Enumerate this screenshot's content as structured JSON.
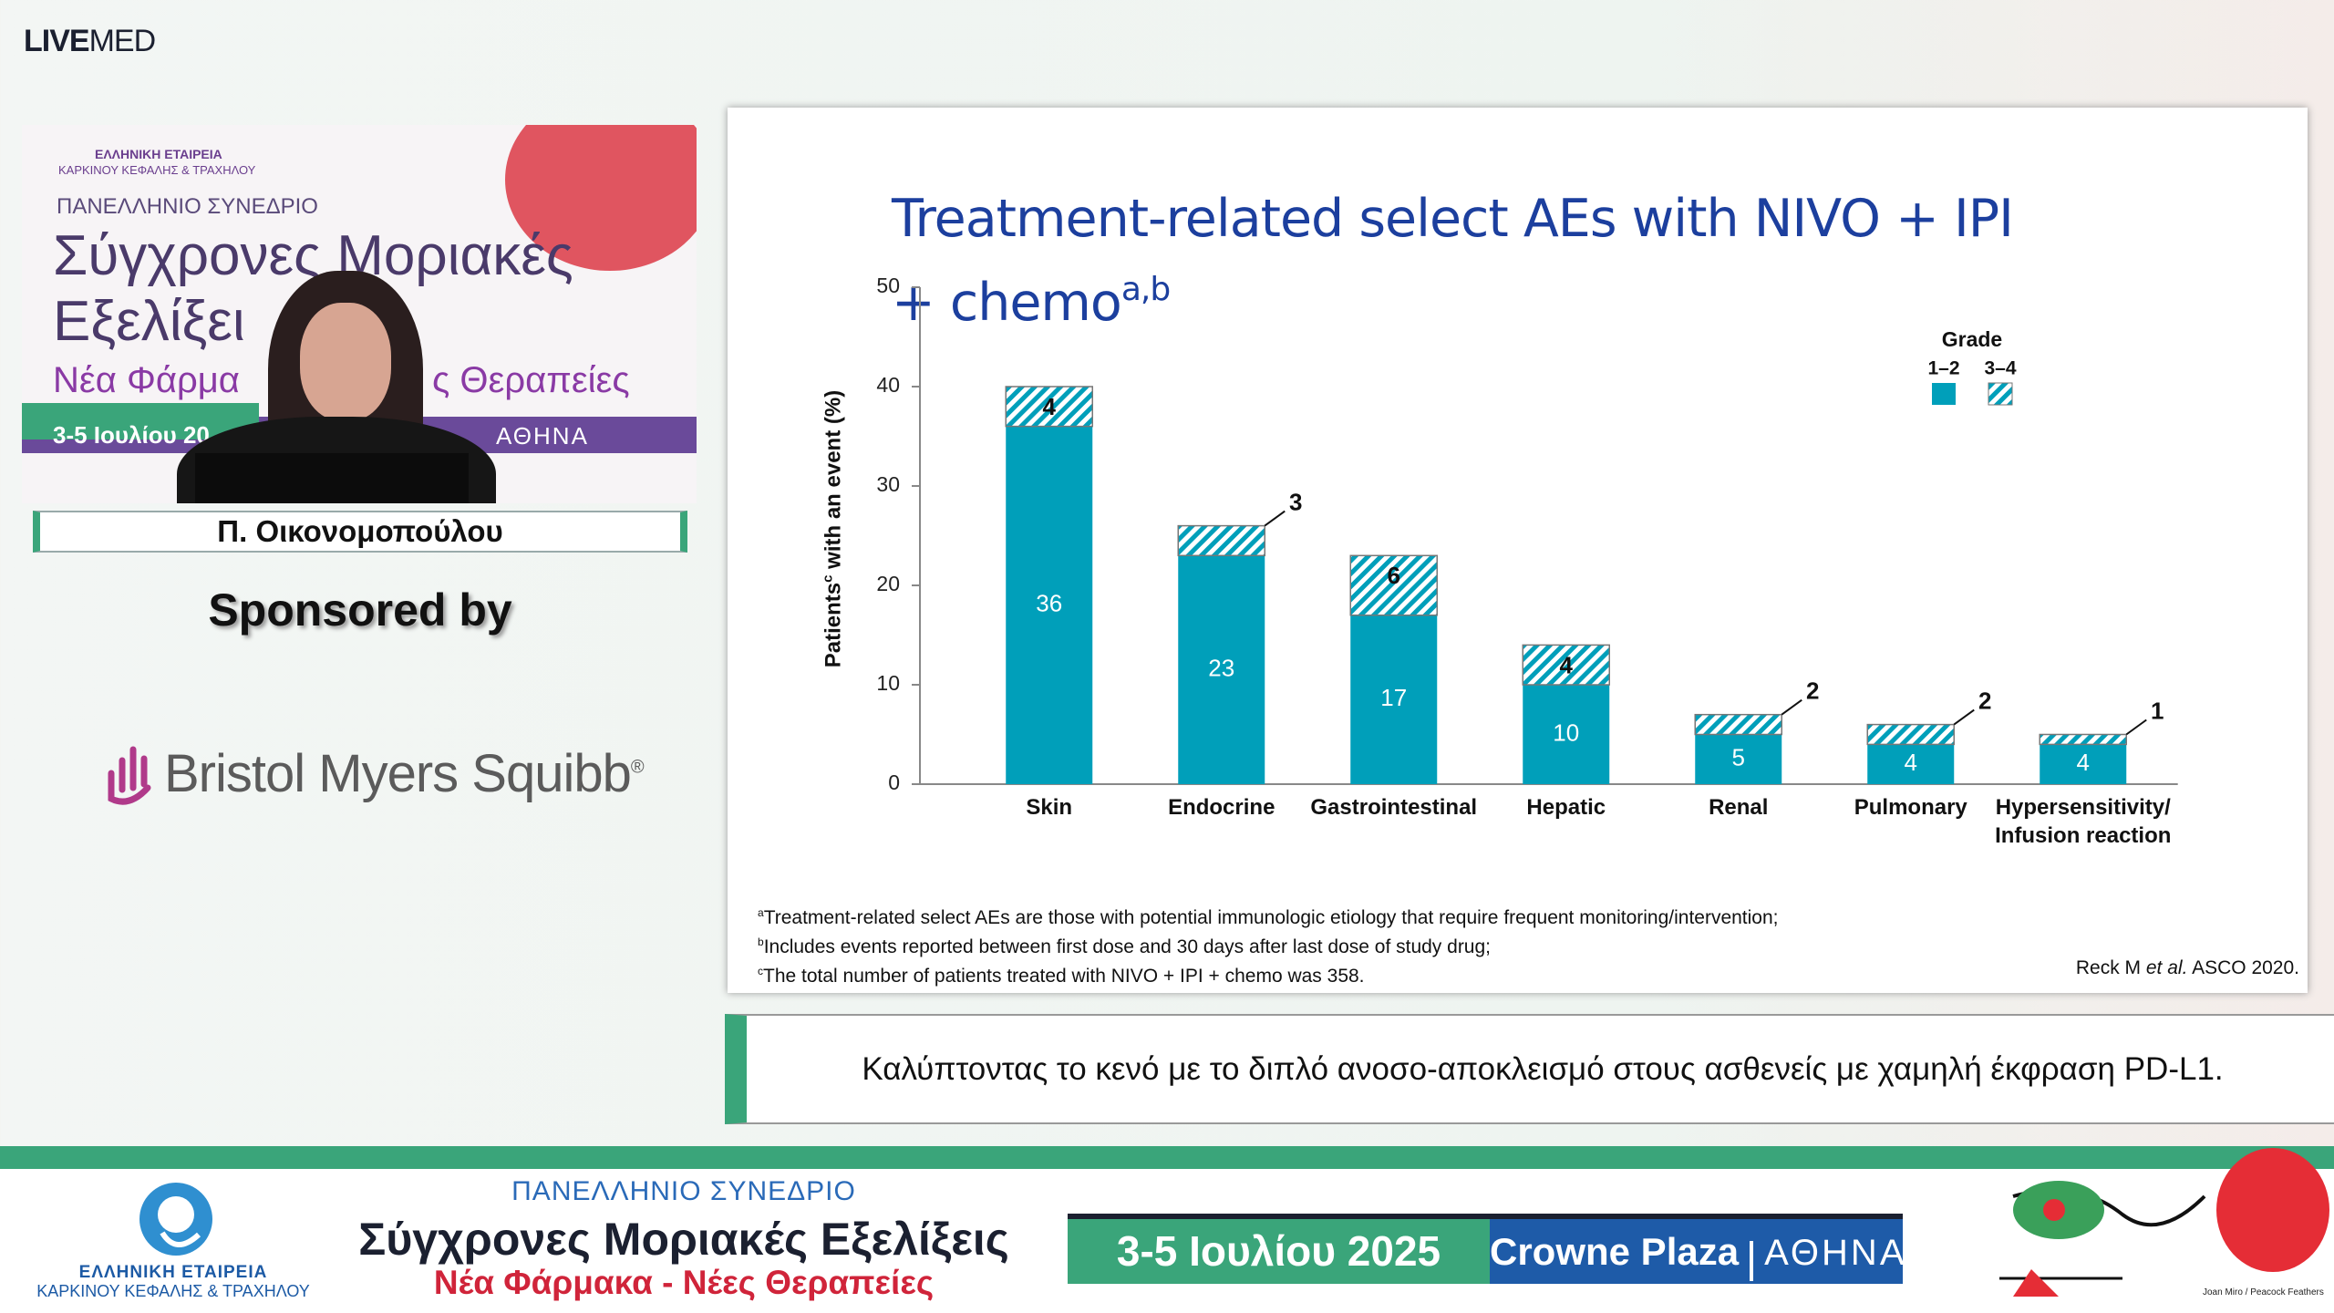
{
  "header": {
    "logo_bold": "LIVE",
    "logo_light": "MED"
  },
  "video": {
    "poster": [
      "ΕΛΛΗΝΙΚΗ ΕΤΑΙΡΕΙΑ",
      "ΚΑΡΚΙΝΟΥ ΚΕΦΑΛΗΣ & ΤΡΑΧΗΛΟΥ",
      "ΠΑΝΕΛΛΗΝΙΟ ΣΥΝΕΔΡΙΟ",
      "Σύγχρονες Μοριακές",
      "Εξελίξει",
      "Νέα Φάρμα",
      "ς Θεραπείες",
      "3-5 Ιουλίου 20",
      "ΑΘΗΝΑ"
    ]
  },
  "speaker": {
    "name": "Π. Οικονομοπούλου"
  },
  "sponsor": {
    "heading": "Sponsored by",
    "name": "Bristol Myers Squibb",
    "mark": "®"
  },
  "chart_data": {
    "type": "stacked_bar",
    "title": "Treatment-related select AEs with NIVO + IPI + chemo",
    "title_sup": "a,b",
    "ylabel": "Patients",
    "ylabel_sup": "c",
    "ylabel_rest": "with an event (%)",
    "categories": [
      "Skin",
      "Endocrine",
      "Gastrointestinal",
      "Hepatic",
      "Renal",
      "Pulmonary",
      "Hypersensitivity/ Infusion reaction"
    ],
    "series": [
      {
        "name": "1–2",
        "color": "#009fba",
        "values": [
          36,
          23,
          17,
          10,
          5,
          4,
          4
        ]
      },
      {
        "name": "3–4",
        "color": "#009fba",
        "hatch": true,
        "values": [
          4,
          3,
          6,
          4,
          2,
          2,
          1
        ]
      }
    ],
    "legend_title": "Grade",
    "legend": "top-right",
    "ylim": [
      0,
      50
    ],
    "yticks": [
      0,
      10,
      20,
      30,
      40,
      50
    ],
    "grid": false
  },
  "slide": {
    "footnotes": [
      {
        "sup": "a",
        "text": "Treatment-related select AEs are those with potential immunologic etiology that require frequent monitoring/intervention;"
      },
      {
        "sup": "b",
        "text": "Includes events reported between first dose and 30 days after last dose of study drug;"
      },
      {
        "sup": "c",
        "text": "The total number of patients treated with NIVO + IPI + chemo was 358."
      }
    ],
    "citation": {
      "author": "Reck M",
      "italic": "et al.",
      "rest": "ASCO 2020."
    }
  },
  "caption": "Καλύπτοντας το κενό με το διπλό ανοσο-αποκλεισμό στους ασθενείς με χαμηλή έκφραση PD-L1.",
  "footer": {
    "society": [
      "ΕΛΛΗΝΙΚΗ ΕΤΑΙΡΕΙΑ",
      "ΚΑΡΚΙΝΟΥ ΚΕΦΑΛΗΣ & ΤΡΑΧΗΛΟΥ"
    ],
    "congress": "ΠΑΝΕΛΛΗΝΙΟ ΣΥΝΕΔΡΙΟ",
    "name": "Σύγχρονες Μοριακές Εξελίξεις",
    "subtitle": "Νέα Φάρμακα - Νέες Θεραπείες",
    "dates": "3-5 Ιουλίου 2025",
    "venue": "Crowne Plaza",
    "city": "ΑΘΗΝΑ",
    "art_credit": "Joan Miro / Peacock Feathers"
  }
}
